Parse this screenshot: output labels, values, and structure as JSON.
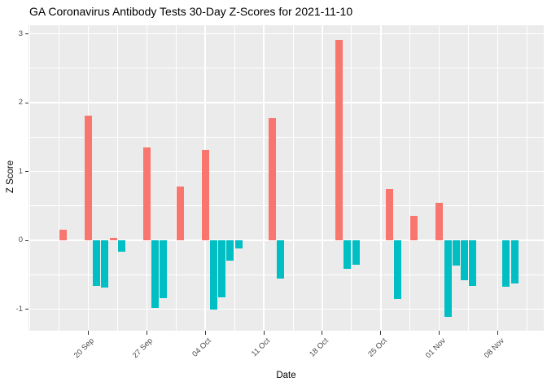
{
  "chart_data": {
    "type": "bar",
    "title": "GA Coronavirus Antibody Tests 30-Day Z-Scores for 2021-11-10",
    "xlabel": "Date",
    "ylabel": "Z Score",
    "ylim": [
      -1.31,
      3.12
    ],
    "x_axis_type": "date",
    "x_tick_labels": [
      "20 Sep",
      "27 Sep",
      "04 Oct",
      "11 Oct",
      "18 Oct",
      "25 Oct",
      "01 Nov",
      "08 Nov"
    ],
    "x_tick_dates": [
      "2021-09-20",
      "2021-09-27",
      "2021-10-04",
      "2021-10-11",
      "2021-10-18",
      "2021-10-25",
      "2021-11-01",
      "2021-11-08"
    ],
    "y_ticks": [
      -1,
      0,
      1,
      2,
      3
    ],
    "legend": "none",
    "grid": {
      "major": true,
      "minor": true,
      "color": "#FFFFFF"
    },
    "color_by": "sign of value",
    "colors": {
      "positive": "#F8766D",
      "negative": "#00BFC4",
      "panel_bg": "#EBEBEB",
      "grid": "#FFFFFF",
      "axis_text": "#4D4D4D",
      "tick_mark": "#333333",
      "title_text": "#000000"
    },
    "bars": [
      {
        "date": "2021-09-17",
        "value": 0.15
      },
      {
        "date": "2021-09-20",
        "value": 1.81
      },
      {
        "date": "2021-09-21",
        "value": -0.66
      },
      {
        "date": "2021-09-22",
        "value": -0.69
      },
      {
        "date": "2021-09-23",
        "value": 0.04
      },
      {
        "date": "2021-09-24",
        "value": -0.17
      },
      {
        "date": "2021-09-27",
        "value": 1.35
      },
      {
        "date": "2021-09-28",
        "value": -0.98
      },
      {
        "date": "2021-09-29",
        "value": -0.84
      },
      {
        "date": "2021-10-01",
        "value": 0.78
      },
      {
        "date": "2021-10-04",
        "value": 1.31
      },
      {
        "date": "2021-10-05",
        "value": -1.01
      },
      {
        "date": "2021-10-06",
        "value": -0.83
      },
      {
        "date": "2021-10-07",
        "value": -0.29
      },
      {
        "date": "2021-10-08",
        "value": -0.12
      },
      {
        "date": "2021-10-12",
        "value": 1.78
      },
      {
        "date": "2021-10-13",
        "value": -0.56
      },
      {
        "date": "2021-10-20",
        "value": 2.91
      },
      {
        "date": "2021-10-21",
        "value": -0.41
      },
      {
        "date": "2021-10-22",
        "value": -0.35
      },
      {
        "date": "2021-10-26",
        "value": 0.74
      },
      {
        "date": "2021-10-27",
        "value": -0.85
      },
      {
        "date": "2021-10-29",
        "value": 0.36
      },
      {
        "date": "2021-11-01",
        "value": 0.54
      },
      {
        "date": "2021-11-02",
        "value": -1.11
      },
      {
        "date": "2021-11-03",
        "value": -0.37
      },
      {
        "date": "2021-11-04",
        "value": -0.58
      },
      {
        "date": "2021-11-05",
        "value": -0.66
      },
      {
        "date": "2021-11-09",
        "value": -0.67
      },
      {
        "date": "2021-11-10",
        "value": -0.63
      }
    ]
  }
}
